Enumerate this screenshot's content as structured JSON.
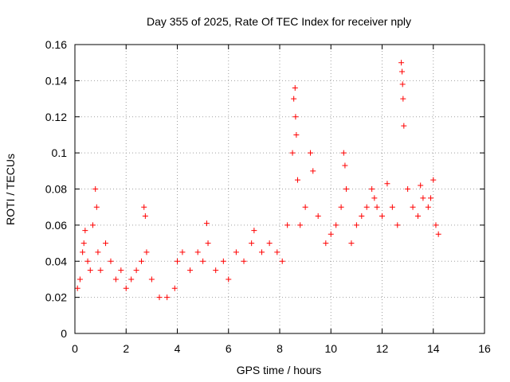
{
  "chart_data": {
    "type": "scatter",
    "title": "Day 355 of 2025, Rate Of TEC Index for receiver nply",
    "xlabel": "GPS time / hours",
    "ylabel": "ROTI / TECUs",
    "xlim": [
      0,
      16
    ],
    "ylim": [
      0,
      0.16
    ],
    "xticks": [
      0,
      2,
      4,
      6,
      8,
      10,
      12,
      14,
      16
    ],
    "yticks": [
      0,
      0.02,
      0.04,
      0.06,
      0.08,
      0.1,
      0.12,
      0.14,
      0.16
    ],
    "xtick_labels": [
      "0",
      "2",
      "4",
      "6",
      "8",
      "10",
      "12",
      "14",
      "16"
    ],
    "ytick_labels": [
      "0",
      "0.02",
      "0.04",
      "0.06",
      "0.08",
      "0.1",
      "0.12",
      "0.14",
      "0.16"
    ],
    "grid": true,
    "marker": "+",
    "color": "#ff0000",
    "series": [
      {
        "name": "ROTI",
        "x": [
          0.1,
          0.2,
          0.3,
          0.35,
          0.4,
          0.5,
          0.6,
          0.7,
          0.8,
          0.85,
          0.9,
          1.0,
          1.2,
          1.4,
          1.6,
          1.8,
          2.0,
          2.2,
          2.4,
          2.6,
          2.7,
          2.75,
          2.8,
          3.0,
          3.3,
          3.6,
          3.9,
          4.0,
          4.2,
          4.5,
          4.8,
          5.0,
          5.15,
          5.2,
          5.5,
          5.8,
          6.0,
          6.3,
          6.6,
          6.9,
          7.0,
          7.3,
          7.6,
          7.9,
          8.1,
          8.3,
          8.5,
          8.55,
          8.6,
          8.62,
          8.65,
          8.7,
          8.8,
          9.0,
          9.2,
          9.3,
          9.5,
          9.8,
          10.0,
          10.2,
          10.4,
          10.5,
          10.55,
          10.6,
          10.8,
          11.0,
          11.2,
          11.4,
          11.6,
          11.7,
          11.8,
          12.0,
          12.2,
          12.4,
          12.6,
          12.75,
          12.78,
          12.8,
          12.82,
          12.85,
          13.0,
          13.2,
          13.4,
          13.5,
          13.6,
          13.8,
          13.9,
          14.0,
          14.1,
          14.2
        ],
        "y": [
          0.025,
          0.03,
          0.045,
          0.05,
          0.057,
          0.04,
          0.035,
          0.06,
          0.08,
          0.07,
          0.045,
          0.035,
          0.05,
          0.04,
          0.03,
          0.035,
          0.025,
          0.03,
          0.035,
          0.04,
          0.07,
          0.065,
          0.045,
          0.03,
          0.02,
          0.02,
          0.025,
          0.04,
          0.045,
          0.035,
          0.045,
          0.04,
          0.061,
          0.05,
          0.035,
          0.04,
          0.03,
          0.045,
          0.04,
          0.05,
          0.057,
          0.045,
          0.05,
          0.045,
          0.04,
          0.06,
          0.1,
          0.13,
          0.136,
          0.12,
          0.11,
          0.085,
          0.06,
          0.07,
          0.1,
          0.09,
          0.065,
          0.05,
          0.055,
          0.06,
          0.07,
          0.1,
          0.093,
          0.08,
          0.05,
          0.06,
          0.065,
          0.07,
          0.08,
          0.075,
          0.07,
          0.065,
          0.083,
          0.07,
          0.06,
          0.15,
          0.145,
          0.138,
          0.13,
          0.115,
          0.08,
          0.07,
          0.065,
          0.082,
          0.075,
          0.07,
          0.075,
          0.085,
          0.06,
          0.055
        ]
      }
    ]
  }
}
